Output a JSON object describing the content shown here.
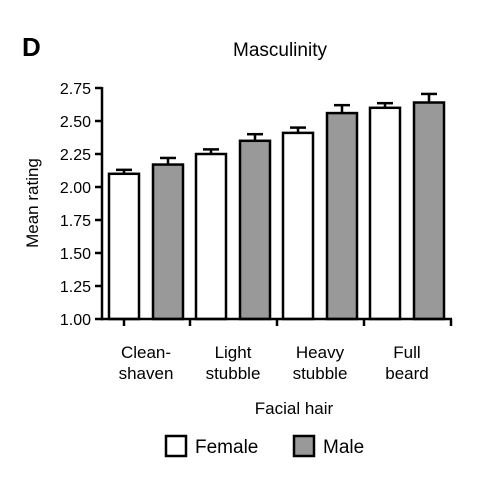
{
  "panel_label": "D",
  "chart_data": {
    "type": "bar",
    "title": "Masculinity",
    "xlabel": "Facial hair",
    "ylabel": "Mean rating",
    "ylim": [
      1.0,
      2.75
    ],
    "yticks": [
      "1.00",
      "1.25",
      "1.50",
      "1.75",
      "2.00",
      "2.25",
      "2.50",
      "2.75"
    ],
    "categories": [
      [
        "Clean-",
        "shaven"
      ],
      [
        "Light",
        "stubble"
      ],
      [
        "Heavy",
        "stubble"
      ],
      [
        "Full",
        "beard"
      ]
    ],
    "series": [
      {
        "name": "Female",
        "color": "#ffffff",
        "values": [
          2.1,
          2.25,
          2.41,
          2.6
        ],
        "errors": [
          0.03,
          0.035,
          0.04,
          0.035
        ]
      },
      {
        "name": "Male",
        "color": "#999999",
        "values": [
          2.17,
          2.35,
          2.56,
          2.64
        ],
        "errors": [
          0.05,
          0.05,
          0.06,
          0.065
        ]
      }
    ],
    "legend_position": "bottom",
    "grid": false
  }
}
